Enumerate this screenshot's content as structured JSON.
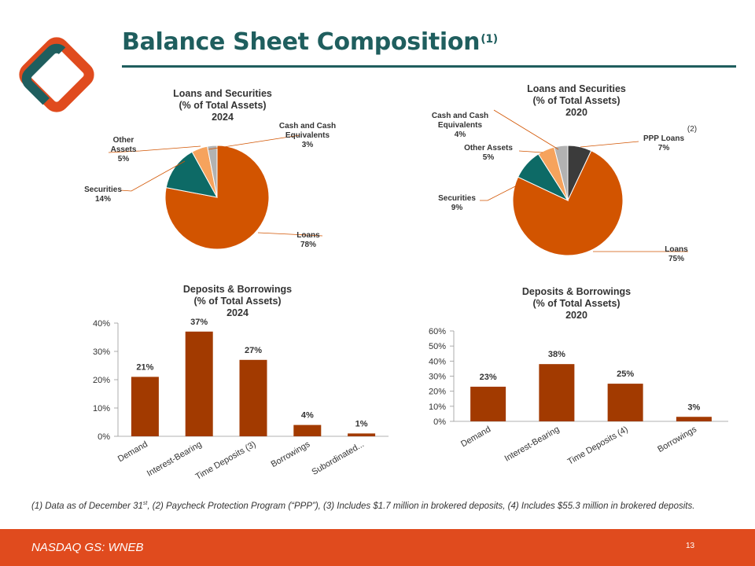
{
  "page": {
    "title": "Balance Sheet Composition",
    "title_note": "(1)",
    "footnote": {
      "part1": "(1) Data as of December 31",
      "part1_sup": "st",
      "part2": ", (2) Paycheck Protection Program (“PPP”), (3) Includes $1.7 million in brokered deposits, (4) Includes $55.3 million in brokered deposits."
    },
    "footer": {
      "ticker": "NASDAQ GS: WNEB",
      "page_number": "13"
    }
  },
  "colors": {
    "brand_teal": "#1f5e5e",
    "brand_orange": "#e04b1e",
    "loans": "#d25400",
    "securities": "#0d6a66",
    "other_assets": "#f6a35d",
    "cash": "#b2b2b2",
    "ppp": "#3b3b3b",
    "bar": "#a23a00"
  },
  "chart_data": [
    {
      "type": "pie",
      "id": "pie2024",
      "title": [
        "Loans and Securities",
        "(% of Total Assets)",
        "2024"
      ],
      "slices": [
        {
          "key": "loans",
          "name": [
            "Loans"
          ],
          "value": 78,
          "label": "78%"
        },
        {
          "key": "securities",
          "name": [
            "Securities"
          ],
          "value": 14,
          "label": "14%"
        },
        {
          "key": "other_assets",
          "name": [
            "Other",
            "Assets"
          ],
          "value": 5,
          "label": "5%"
        },
        {
          "key": "cash",
          "name": [
            "Cash and Cash",
            "Equivalents"
          ],
          "value": 3,
          "label": "3%"
        }
      ]
    },
    {
      "type": "pie",
      "id": "pie2020",
      "title": [
        "Loans and Securities",
        "(% of Total Assets)",
        "2020"
      ],
      "slices": [
        {
          "key": "ppp",
          "name": [
            "PPP Loans"
          ],
          "value": 7,
          "label": "7%",
          "note": "(2)"
        },
        {
          "key": "loans",
          "name": [
            "Loans"
          ],
          "value": 75,
          "label": "75%"
        },
        {
          "key": "securities",
          "name": [
            "Securities"
          ],
          "value": 9,
          "label": "9%"
        },
        {
          "key": "other_assets",
          "name": [
            "Other Assets"
          ],
          "value": 5,
          "label": "5%"
        },
        {
          "key": "cash",
          "name": [
            "Cash and Cash",
            "Equivalents"
          ],
          "value": 4,
          "label": "4%"
        }
      ]
    },
    {
      "type": "bar",
      "id": "bar2024",
      "title": [
        "Deposits & Borrowings",
        "(% of Total Assets)",
        "2024"
      ],
      "categories": [
        "Demand",
        "Interest-Bearing",
        "Time Deposits (3)",
        "Borrowings",
        "Subordinated..."
      ],
      "values": [
        21,
        37,
        27,
        4,
        1
      ],
      "data_labels": [
        "21%",
        "37%",
        "27%",
        "4%",
        "1%"
      ],
      "ylim": [
        0,
        40
      ],
      "yticks": [
        "0%",
        "10%",
        "20%",
        "30%",
        "40%"
      ]
    },
    {
      "type": "bar",
      "id": "bar2020",
      "title": [
        "Deposits & Borrowings",
        "(% of Total Assets)",
        "2020"
      ],
      "categories": [
        "Demand",
        "Interest-Bearing",
        "Time Deposits (4)",
        "Borrowings"
      ],
      "values": [
        23,
        38,
        25,
        3
      ],
      "data_labels": [
        "23%",
        "38%",
        "25%",
        "3%"
      ],
      "ylim": [
        0,
        60
      ],
      "yticks": [
        "0%",
        "10%",
        "20%",
        "30%",
        "40%",
        "50%",
        "60%"
      ]
    }
  ]
}
